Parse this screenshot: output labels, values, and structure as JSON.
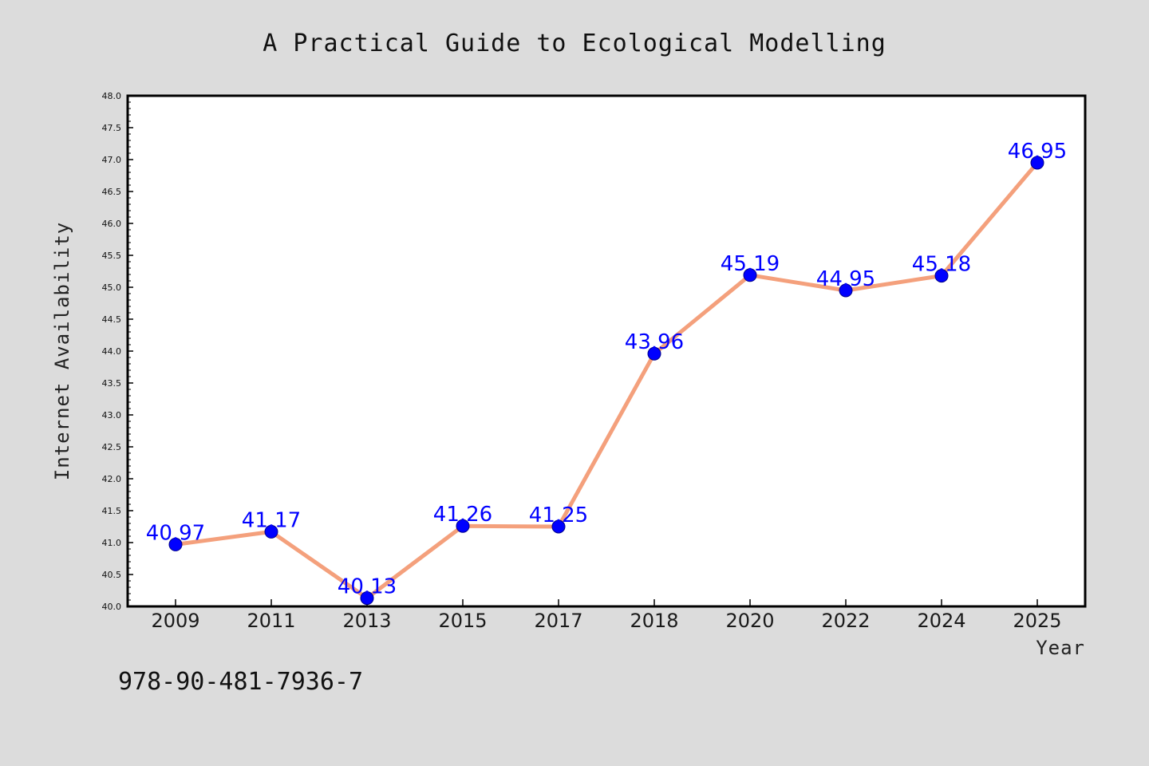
{
  "chart_data": {
    "type": "line",
    "title": "A Practical Guide to Ecological Modelling",
    "xlabel": "Year",
    "ylabel": "Internet Availability",
    "categories": [
      "2009",
      "2011",
      "2013",
      "2015",
      "2017",
      "2018",
      "2020",
      "2022",
      "2024",
      "2025"
    ],
    "series": [
      {
        "values": [
          40.97,
          41.17,
          40.13,
          41.26,
          41.25,
          43.96,
          45.19,
          44.95,
          45.18,
          46.95
        ],
        "line_color": "#f4a07c",
        "marker_color": "#0000ff"
      }
    ],
    "data_labels": [
      "40.97",
      "41.17",
      "40.13",
      "41.26",
      "41.25",
      "43.96",
      "45.19",
      "44.95",
      "45.18",
      "46.95"
    ],
    "ylim": [
      40.0,
      48.0
    ],
    "yticks": [
      "40.0",
      "40.5",
      "41.0",
      "41.5",
      "42.0",
      "42.5",
      "43.0",
      "43.5",
      "44.0",
      "44.5",
      "45.0",
      "45.5",
      "46.0",
      "46.5",
      "47.0",
      "47.5",
      "48.0"
    ],
    "grid": false,
    "legend": "none"
  },
  "footer": {
    "isbn": "978-90-481-7936-7"
  },
  "colors": {
    "background": "#dcdcdc",
    "plot_background": "#ffffff",
    "line": "#f4a07c",
    "marker": "#0000ff",
    "label": "#0000ff"
  }
}
